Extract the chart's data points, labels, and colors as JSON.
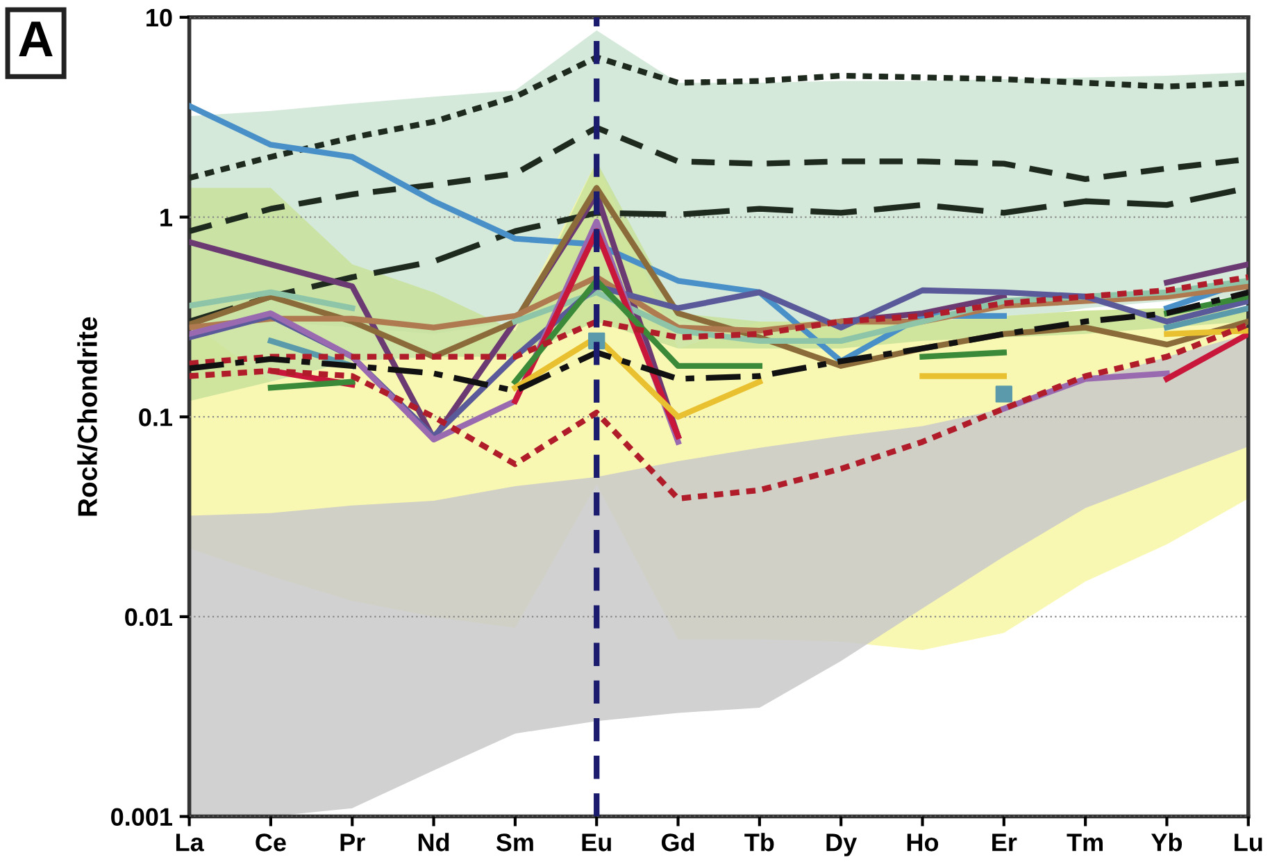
{
  "chart_data": {
    "type": "line",
    "ylabel": "Rock/Chondrite",
    "annotations": [
      "A"
    ],
    "categories": [
      "La",
      "Ce",
      "Pr",
      "Nd",
      "Sm",
      "Eu",
      "Gd",
      "Tb",
      "Dy",
      "Ho",
      "Er",
      "Tm",
      "Yb",
      "Lu"
    ],
    "log": "y",
    "ylim": [
      0.001,
      10
    ],
    "yticks": [
      {
        "value": 0.001,
        "label": "0.001"
      },
      {
        "value": 0.01,
        "label": "0.01"
      },
      {
        "value": 0.1,
        "label": "0.1"
      },
      {
        "value": 1,
        "label": "1"
      },
      {
        "value": 10,
        "label": "10"
      }
    ],
    "grid": "y",
    "legend": false,
    "marker": "none",
    "ref_lines": [
      {
        "axis": "x",
        "value": "Eu",
        "color": "#1c1c6e",
        "line_style": "dashed"
      }
    ],
    "series": [
      {
        "type": "area",
        "color": "#cde5d3",
        "values": [
          null,
          null,
          null,
          null,
          null,
          null,
          null,
          null,
          null,
          null,
          null,
          null,
          null,
          null
        ],
        "upper": [
          3.2,
          3.4,
          3.7,
          4.0,
          4.3,
          8.6,
          4.7,
          4.7,
          4.8,
          4.8,
          4.9,
          5.0,
          5.1,
          5.3
        ],
        "lower": [
          0.3,
          0.3,
          0.28,
          0.26,
          0.3,
          0.5,
          0.3,
          0.28,
          0.25,
          0.25,
          0.3,
          0.35,
          0.38,
          0.4
        ]
      },
      {
        "type": "area",
        "color": "#f8f7a4",
        "values": [
          null,
          null,
          null,
          null,
          null,
          null,
          null,
          null,
          null,
          null,
          null,
          null,
          null,
          null
        ],
        "upper": [
          0.3,
          0.15,
          0.19,
          0.2,
          0.3,
          1.9,
          0.22,
          0.3,
          0.3,
          0.3,
          0.32,
          0.34,
          0.35,
          0.35
        ],
        "lower": [
          0.022,
          0.016,
          0.012,
          0.01,
          0.0088,
          0.046,
          0.0077,
          0.0077,
          0.0075,
          0.0068,
          0.0083,
          0.015,
          0.023,
          0.039
        ]
      },
      {
        "type": "area",
        "color": "#c8e29a",
        "values": [
          null,
          null,
          null,
          null,
          null,
          null,
          null,
          null,
          null,
          null,
          null,
          null,
          null,
          null
        ],
        "upper": [
          1.4,
          1.4,
          0.58,
          0.42,
          0.27,
          1.9,
          0.33,
          0.3,
          0.3,
          0.3,
          0.32,
          0.34,
          0.35,
          0.35
        ],
        "lower": [
          0.12,
          0.15,
          0.19,
          0.2,
          0.2,
          0.3,
          0.22,
          0.22,
          0.22,
          0.24,
          0.25,
          0.26,
          0.28,
          0.3
        ]
      },
      {
        "type": "area",
        "color": "#c9c9c9",
        "values": [
          null,
          null,
          null,
          null,
          null,
          null,
          null,
          null,
          null,
          null,
          null,
          null,
          null,
          null
        ],
        "upper": [
          0.032,
          0.033,
          0.036,
          0.038,
          0.045,
          0.05,
          0.06,
          0.07,
          0.08,
          0.09,
          0.11,
          0.15,
          0.2,
          0.26
        ],
        "lower": [
          0.001,
          0.001,
          0.0011,
          0.0017,
          0.0026,
          0.003,
          0.0033,
          0.0035,
          0.006,
          0.011,
          0.02,
          0.035,
          0.05,
          0.071
        ]
      },
      {
        "color": "#1e2a1e",
        "line_style": "dotted",
        "values": [
          1.57,
          2.0,
          2.5,
          3.0,
          4.0,
          6.3,
          4.7,
          4.8,
          5.1,
          5.0,
          4.9,
          4.7,
          4.5,
          4.7
        ]
      },
      {
        "color": "#1e2a1e",
        "line_style": "dashed",
        "values": [
          0.85,
          1.1,
          1.3,
          1.45,
          1.65,
          2.8,
          1.9,
          1.85,
          1.9,
          1.9,
          1.85,
          1.55,
          1.75,
          1.95
        ]
      },
      {
        "color": "#1e2a1e",
        "line_style": "longdash",
        "values": [
          0.3,
          0.4,
          0.5,
          0.6,
          0.85,
          1.05,
          1.03,
          1.1,
          1.05,
          1.15,
          1.05,
          1.2,
          1.15,
          1.4
        ]
      },
      {
        "color": "#4a90c8",
        "line_style": "solid",
        "values": [
          3.6,
          2.3,
          2.0,
          1.2,
          0.78,
          0.73,
          0.48,
          0.42,
          0.19,
          0.32,
          0.32,
          null,
          0.35,
          0.48
        ]
      },
      {
        "color": "#6b3a72",
        "line_style": "solid",
        "values": [
          0.75,
          0.58,
          0.45,
          0.078,
          0.3,
          1.3,
          0.08,
          null,
          0.3,
          0.33,
          0.4,
          null,
          0.47,
          0.58
        ]
      },
      {
        "color": "#8b6b3a",
        "line_style": "solid",
        "values": [
          0.29,
          0.4,
          0.3,
          0.2,
          0.3,
          1.4,
          0.33,
          0.25,
          0.18,
          0.22,
          0.26,
          0.28,
          0.23,
          0.3
        ]
      },
      {
        "color": "#b07a50",
        "line_style": "solid",
        "values": [
          0.28,
          0.31,
          0.31,
          0.28,
          0.32,
          0.5,
          0.28,
          0.27,
          0.3,
          0.3,
          0.36,
          0.38,
          0.4,
          0.45
        ]
      },
      {
        "color": "#8ec5a8",
        "line_style": "solid",
        "values": [
          0.36,
          0.42,
          0.35,
          null,
          0.3,
          0.42,
          0.27,
          0.24,
          0.24,
          0.3,
          0.38,
          0.4,
          0.42,
          0.48
        ]
      },
      {
        "color": "#5a5a9a",
        "line_style": "solid",
        "values": [
          0.25,
          0.32,
          0.2,
          0.08,
          0.2,
          0.45,
          0.35,
          0.42,
          0.28,
          0.43,
          0.42,
          0.4,
          0.3,
          0.38
        ]
      },
      {
        "color": "#9a6ab0",
        "line_style": "solid",
        "values": [
          0.26,
          0.33,
          0.2,
          0.077,
          0.12,
          0.95,
          0.075,
          null,
          null,
          null,
          0.11,
          0.155,
          0.165,
          null
        ]
      },
      {
        "color": "#c8173a",
        "line_style": "solid",
        "values": [
          null,
          0.17,
          0.145,
          null,
          0.12,
          0.85,
          0.08,
          null,
          null,
          null,
          null,
          null,
          0.155,
          0.26
        ]
      },
      {
        "color": "#3a8a3a",
        "line_style": "solid",
        "values": [
          null,
          0.14,
          0.15,
          null,
          0.15,
          0.48,
          0.18,
          0.18,
          null,
          0.2,
          0.21,
          null,
          0.33,
          0.4
        ]
      },
      {
        "color": "#e8c030",
        "line_style": "solid",
        "values": [
          null,
          null,
          null,
          null,
          0.14,
          0.25,
          0.1,
          0.15,
          null,
          0.16,
          0.16,
          null,
          0.26,
          0.27
        ]
      },
      {
        "color": "#5a9aaa",
        "line_style": "solid",
        "values": [
          null,
          0.24,
          0.18,
          null,
          null,
          null,
          null,
          null,
          null,
          null,
          null,
          null,
          0.28,
          0.35
        ]
      },
      {
        "color": "#b01c2a",
        "line_style": "dotted",
        "values": [
          0.185,
          0.2,
          0.2,
          0.2,
          0.2,
          0.3,
          0.25,
          0.26,
          0.3,
          0.32,
          0.37,
          0.4,
          0.43,
          0.5
        ]
      },
      {
        "color": "#b01c2a",
        "line_style": "dotted",
        "values": [
          0.16,
          0.17,
          0.16,
          0.1,
          0.058,
          0.105,
          0.039,
          0.043,
          0.055,
          0.075,
          0.11,
          0.16,
          0.2,
          0.29
        ]
      },
      {
        "color": "#111111",
        "line_style": "dashdot",
        "values": [
          0.175,
          0.195,
          0.18,
          0.165,
          0.135,
          0.21,
          0.155,
          0.16,
          0.19,
          0.22,
          0.26,
          0.3,
          0.33,
          0.42
        ]
      },
      {
        "type": "scatter",
        "marker": "square",
        "color": "#5a9aaa",
        "values": [
          null,
          null,
          null,
          null,
          null,
          0.24,
          null,
          null,
          null,
          null,
          0.13,
          null,
          null,
          null
        ]
      }
    ]
  }
}
